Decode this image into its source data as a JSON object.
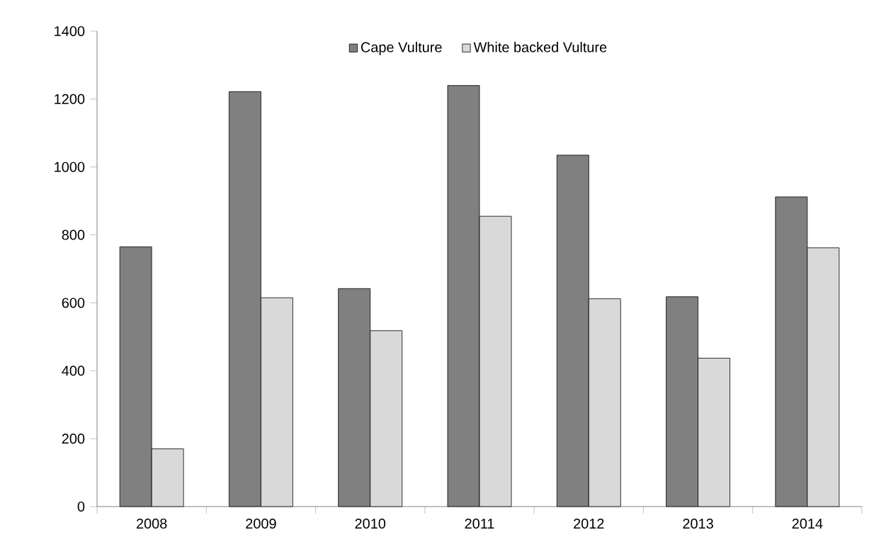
{
  "chart_data": {
    "type": "bar",
    "categories": [
      "2008",
      "2009",
      "2010",
      "2011",
      "2012",
      "2013",
      "2014"
    ],
    "series": [
      {
        "name": "Cape Vulture",
        "color": "#808080",
        "values": [
          765,
          1222,
          642,
          1240,
          1035,
          618,
          912
        ]
      },
      {
        "name": "White backed Vulture",
        "color": "#d9d9d9",
        "values": [
          170,
          615,
          518,
          855,
          612,
          437,
          762
        ]
      }
    ],
    "ylim": [
      0,
      1400
    ],
    "yticks": [
      0,
      200,
      400,
      600,
      800,
      1000,
      1200,
      1400
    ],
    "grid": false,
    "legend": "top"
  }
}
